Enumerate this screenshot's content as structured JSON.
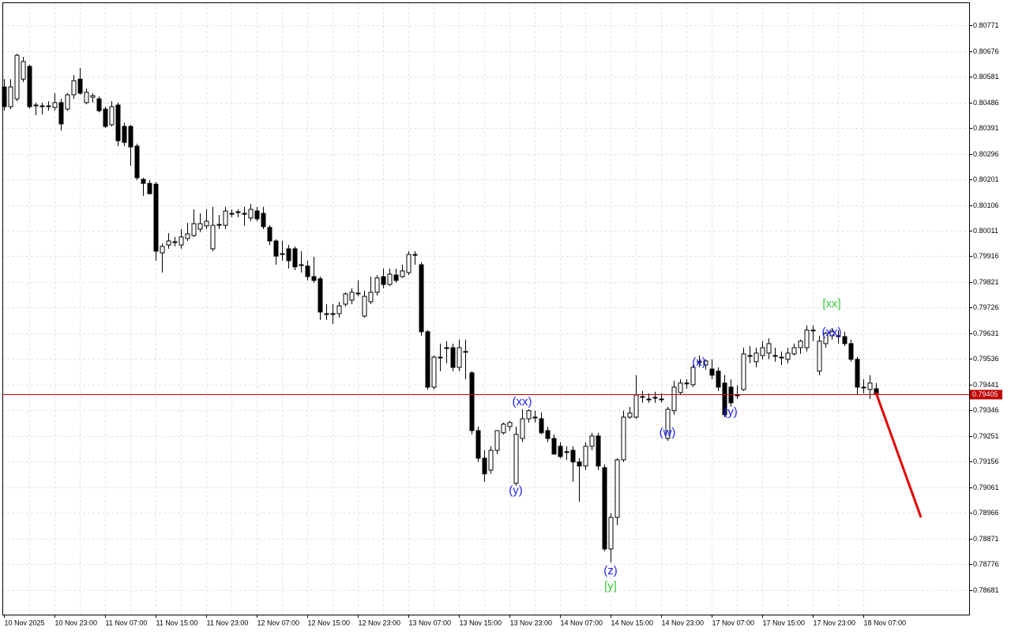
{
  "chart_data": {
    "type": "candlestick",
    "categories": [
      "10 Nov 2025",
      null,
      null,
      null,
      null,
      null,
      null,
      null,
      "10 Nov 23:00",
      null,
      null,
      null,
      null,
      null,
      null,
      null,
      "11 Nov 07:00",
      null,
      null,
      null,
      null,
      null,
      null,
      null,
      "11 Nov 15:00",
      null,
      null,
      null,
      null,
      null,
      null,
      null,
      "11 Nov 23:00",
      null,
      null,
      null,
      null,
      null,
      null,
      null,
      "12 Nov 07:00",
      null,
      null,
      null,
      null,
      null,
      null,
      null,
      "12 Nov 15:00",
      null,
      null,
      null,
      null,
      null,
      null,
      null,
      "12 Nov 23:00",
      null,
      null,
      null,
      null,
      null,
      null,
      null,
      "13 Nov 07:00",
      null,
      null,
      null,
      null,
      null,
      null,
      null,
      "13 Nov 15:00",
      null,
      null,
      null,
      null,
      null,
      null,
      null,
      "13 Nov 23:00",
      null,
      null,
      null,
      null,
      null,
      null,
      null,
      "14 Nov 07:00",
      null,
      null,
      null,
      null,
      null,
      null,
      null,
      "14 Nov 15:00",
      null,
      null,
      null,
      null,
      null,
      null,
      null,
      "14 Nov 23:00",
      null,
      null,
      null,
      null,
      null,
      null,
      null,
      "17 Nov 07:00",
      null,
      null,
      null,
      null,
      null,
      null,
      null,
      "17 Nov 15:00",
      null,
      null,
      null,
      null,
      null,
      null,
      null,
      "17 Nov 23:00",
      null,
      null,
      null,
      null,
      null,
      null,
      null,
      "18 Nov 07:00",
      null,
      null
    ],
    "open": [
      0.80543,
      0.8047,
      0.80499,
      0.80572,
      0.80619,
      0.80473,
      0.8047,
      0.8047,
      0.80467,
      0.80485,
      0.80461,
      0.80514,
      0.80572,
      0.80485,
      0.80505,
      0.80499,
      0.80461,
      0.80403,
      0.80476,
      0.80397,
      0.80397,
      0.80324,
      0.80201,
      0.80186,
      0.80183,
      0.79929,
      0.79958,
      0.7997,
      0.79958,
      0.79982,
      0.79993,
      0.80017,
      0.80029,
      0.79944,
      0.80031,
      0.80031,
      0.80075,
      0.80081,
      0.80075,
      0.80058,
      0.80084,
      0.80075,
      0.80023,
      0.79973,
      0.79926,
      0.79944,
      0.79944,
      0.79885,
      0.7988,
      0.79841,
      0.79833,
      0.79704,
      0.79704,
      0.79704,
      0.79739,
      0.79754,
      0.7978,
      0.79695,
      0.79748,
      0.79783,
      0.79841,
      0.79812,
      0.79847,
      0.79841,
      0.79856,
      0.79923,
      0.79885,
      0.79637,
      0.79432,
      0.79543,
      0.79578,
      0.79578,
      0.79505,
      0.79564,
      0.79485,
      0.79271,
      0.79169,
      0.79125,
      0.79198,
      0.79263,
      0.79286,
      0.79076,
      0.79242,
      0.79315,
      0.79321,
      0.79315,
      0.79271,
      0.79242,
      0.79213,
      0.79193,
      0.79198,
      0.79155,
      0.7914,
      0.79213,
      0.79251,
      0.79134,
      0.78833,
      0.7895,
      0.79163,
      0.79321,
      0.79321,
      0.79397,
      0.79388,
      0.79394,
      0.79388,
      0.79242,
      0.79345,
      0.79412,
      0.79447,
      0.79441,
      0.79526,
      0.79514,
      0.79499,
      0.79491,
      0.79447,
      0.79432,
      0.79403,
      0.79423,
      0.79549,
      0.79526,
      0.79549,
      0.79558,
      0.79549,
      0.79543,
      0.79535,
      0.79555,
      0.79578,
      0.79578,
      0.79643,
      0.79491,
      0.79593,
      0.79622,
      0.79622,
      0.79619,
      0.79593,
      0.79535,
      0.79432,
      0.79423,
      0.79426
    ],
    "high": [
      0.80572,
      0.80572,
      0.80666,
      0.80654,
      0.80625,
      0.80485,
      0.80485,
      0.8049,
      0.8052,
      0.80499,
      0.8052,
      0.80587,
      0.80613,
      0.80537,
      0.8052,
      0.80508,
      0.8047,
      0.8049,
      0.80485,
      0.80411,
      0.80403,
      0.80333,
      0.80207,
      0.80198,
      0.80192,
      0.79964,
      0.80002,
      0.79988,
      0.80017,
      0.8004,
      0.8009,
      0.80075,
      0.8009,
      0.80099,
      0.80069,
      0.80099,
      0.8009,
      0.8009,
      0.80099,
      0.8011,
      0.80099,
      0.80099,
      0.80031,
      0.79979,
      0.79973,
      0.79958,
      0.79953,
      0.79935,
      0.799,
      0.79915,
      0.79841,
      0.79739,
      0.79739,
      0.79748,
      0.79783,
      0.79798,
      0.79827,
      0.79789,
      0.79841,
      0.79847,
      0.79871,
      0.79871,
      0.79871,
      0.79885,
      0.79935,
      0.79935,
      0.79894,
      0.79643,
      0.79549,
      0.79593,
      0.79602,
      0.79593,
      0.79608,
      0.79608,
      0.79491,
      0.79286,
      0.79198,
      0.79213,
      0.79271,
      0.79301,
      0.79307,
      0.79286,
      0.7935,
      0.7935,
      0.79345,
      0.79339,
      0.79286,
      0.79257,
      0.79228,
      0.79213,
      0.79213,
      0.79169,
      0.79228,
      0.79263,
      0.79263,
      0.79146,
      0.78965,
      0.79169,
      0.79345,
      0.79359,
      0.79476,
      0.79418,
      0.79409,
      0.79415,
      0.79409,
      0.79359,
      0.79456,
      0.79461,
      0.79461,
      0.79514,
      0.79549,
      0.79535,
      0.79535,
      0.79505,
      0.79476,
      0.79461,
      0.79438,
      0.79578,
      0.79584,
      0.79578,
      0.79602,
      0.79613,
      0.79578,
      0.79564,
      0.79578,
      0.79593,
      0.79608,
      0.7966,
      0.7966,
      0.79622,
      0.79637,
      0.79651,
      0.79643,
      0.79637,
      0.79608,
      0.79543,
      0.79461,
      0.79476,
      0.79447
    ],
    "low": [
      0.80455,
      0.80461,
      0.8049,
      0.80561,
      0.80464,
      0.80438,
      0.80441,
      0.80455,
      0.80455,
      0.80382,
      0.80455,
      0.80499,
      0.80514,
      0.80479,
      0.80485,
      0.80449,
      0.80391,
      0.80397,
      0.80324,
      0.80324,
      0.80251,
      0.80198,
      0.8014,
      0.80145,
      0.799,
      0.79856,
      0.79944,
      0.79953,
      0.79944,
      0.79973,
      0.79988,
      0.80005,
      0.80017,
      0.79935,
      0.80017,
      0.80017,
      0.80061,
      0.80061,
      0.80029,
      0.80046,
      0.80046,
      0.80017,
      0.79958,
      0.79885,
      0.799,
      0.79871,
      0.79865,
      0.79856,
      0.79827,
      0.79818,
      0.79681,
      0.79681,
      0.79666,
      0.79689,
      0.7973,
      0.79739,
      0.79768,
      0.79689,
      0.79739,
      0.79771,
      0.79798,
      0.79806,
      0.79818,
      0.79836,
      0.79847,
      0.79885,
      0.79622,
      0.79423,
      0.79423,
      0.79491,
      0.7952,
      0.79491,
      0.79491,
      0.79461,
      0.79257,
      0.79155,
      0.79082,
      0.79111,
      0.79184,
      0.79257,
      0.79271,
      0.79067,
      0.79228,
      0.79301,
      0.79301,
      0.79257,
      0.79228,
      0.79184,
      0.79169,
      0.79163,
      0.79082,
      0.79008,
      0.79125,
      0.79198,
      0.79125,
      0.78825,
      0.78783,
      0.78921,
      0.79155,
      0.79315,
      0.79315,
      0.79374,
      0.79374,
      0.79374,
      0.79374,
      0.79233,
      0.7933,
      0.79403,
      0.79426,
      0.79432,
      0.79505,
      0.79497,
      0.79461,
      0.79418,
      0.79321,
      0.79359,
      0.79388,
      0.79418,
      0.7952,
      0.79505,
      0.79535,
      0.79535,
      0.79526,
      0.79514,
      0.7952,
      0.79549,
      0.79555,
      0.79564,
      0.79602,
      0.79476,
      0.79578,
      0.79608,
      0.79593,
      0.79584,
      0.79526,
      0.79403,
      0.79409,
      0.79388,
      0.79403
    ],
    "close": [
      0.8047,
      0.80543,
      0.8066,
      0.80637,
      0.8047,
      0.80476,
      0.80473,
      0.80473,
      0.80485,
      0.80406,
      0.80514,
      0.80566,
      0.8052,
      0.80523,
      0.80511,
      0.80455,
      0.80397,
      0.8047,
      0.80344,
      0.80338,
      0.80321,
      0.80207,
      0.80186,
      0.80148,
      0.79935,
      0.79953,
      0.79973,
      0.7997,
      0.79988,
      0.79999,
      0.80037,
      0.80037,
      0.80046,
      0.80031,
      0.80034,
      0.80084,
      0.80075,
      0.80081,
      0.80075,
      0.8009,
      0.80055,
      0.80026,
      0.79973,
      0.79917,
      0.79926,
      0.799,
      0.79877,
      0.79885,
      0.79841,
      0.79827,
      0.7971,
      0.79704,
      0.79704,
      0.79733,
      0.79777,
      0.79783,
      0.7978,
      0.79768,
      0.79783,
      0.79836,
      0.79812,
      0.7985,
      0.79827,
      0.79862,
      0.79923,
      0.79923,
      0.79637,
      0.79432,
      0.79543,
      0.79543,
      0.79578,
      0.79505,
      0.79578,
      0.79564,
      0.79271,
      0.79169,
      0.79111,
      0.79198,
      0.79271,
      0.79295,
      0.79301,
      0.79257,
      0.79315,
      0.79345,
      0.79321,
      0.79263,
      0.79242,
      0.79184,
      0.79175,
      0.79193,
      0.79155,
      0.7914,
      0.79213,
      0.79251,
      0.7914,
      0.78833,
      0.7895,
      0.79163,
      0.79321,
      0.79336,
      0.79403,
      0.79397,
      0.79388,
      0.79394,
      0.79388,
      0.7935,
      0.79432,
      0.79447,
      0.79447,
      0.79505,
      0.79526,
      0.79529,
      0.79476,
      0.79432,
      0.7933,
      0.79374,
      0.79403,
      0.79555,
      0.79549,
      0.79558,
      0.79578,
      0.79593,
      0.79549,
      0.79543,
      0.79558,
      0.79578,
      0.79602,
      0.79643,
      0.79643,
      0.79602,
      0.79631,
      0.79637,
      0.79622,
      0.79593,
      0.79535,
      0.79432,
      0.79432,
      0.79447,
      0.79405
    ],
    "bull_color": "#ffffff",
    "bear_color": "#000000",
    "ylim": [
      0.7859,
      0.80856
    ],
    "yticks": [
      0.80771,
      0.80676,
      0.80581,
      0.80486,
      0.80391,
      0.80296,
      0.80201,
      0.80106,
      0.80011,
      0.79916,
      0.79821,
      0.79726,
      0.79631,
      0.79536,
      0.79441,
      0.79346,
      0.79251,
      0.79156,
      0.79061,
      0.78966,
      0.78871,
      0.78776,
      0.78681
    ],
    "grid": true,
    "price_line": {
      "value": 0.79405,
      "color": "#c00000"
    },
    "forecast": {
      "color": "#e00000",
      "values": [
        0.79412,
        0.7895
      ]
    },
    "annotations": [
      {
        "text": "(xx)",
        "candle": 82,
        "value": 0.79376,
        "color": "#1c1cff"
      },
      {
        "text": "(y)",
        "candle": 81,
        "value": 0.79047,
        "color": "#1c1cff"
      },
      {
        "text": "(z)",
        "candle": 96,
        "value": 0.78751,
        "color": "#1c1cff"
      },
      {
        "text": "[y]",
        "candle": 96,
        "value": 0.78693,
        "color": "#3ccc3c"
      },
      {
        "text": "(w)",
        "candle": 105,
        "value": 0.79263,
        "color": "#1c1cff"
      },
      {
        "text": "(x)",
        "candle": 110,
        "value": 0.79523,
        "color": "#1c1cff"
      },
      {
        "text": "(y)",
        "candle": 115,
        "value": 0.79339,
        "color": "#1c1cff"
      },
      {
        "text": "[xx]",
        "candle": 131,
        "value": 0.79739,
        "color": "#3ccc3c"
      },
      {
        "text": "(xx)",
        "candle": 131,
        "value": 0.79634,
        "color": "#1c1cff"
      }
    ]
  }
}
